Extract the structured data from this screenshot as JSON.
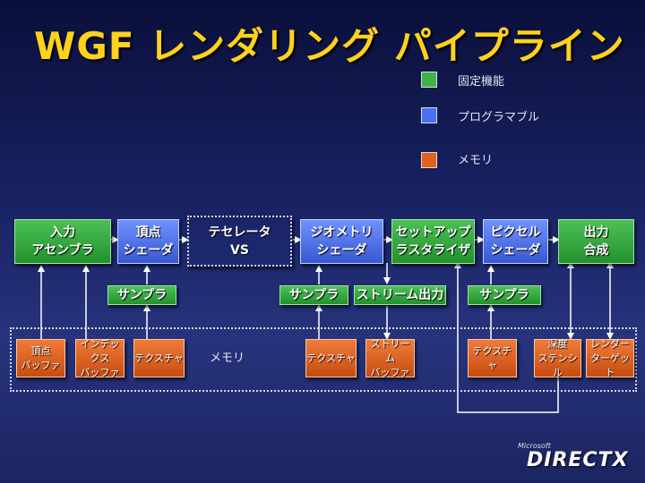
{
  "title": "WGF レンダリング パイプライン",
  "legend": [
    {
      "label": "固定機能",
      "color": "#3fb34a"
    },
    {
      "label": "プログラマブル",
      "color": "#4a6ff0"
    },
    {
      "label": "メモリ",
      "color": "#e0621f"
    }
  ],
  "stages": [
    {
      "label": "入力\nアセンブラ",
      "kind": "fixed"
    },
    {
      "label": "頂点\nシェーダ",
      "kind": "programmable"
    },
    {
      "label": "テセレータ\nVS",
      "kind": "optional"
    },
    {
      "label": "ジオメトリ\nシェーダ",
      "kind": "programmable"
    },
    {
      "label": "セットアップ\nラスタライザ",
      "kind": "fixed"
    },
    {
      "label": "ピクセル\nシェーダ",
      "kind": "programmable"
    },
    {
      "label": "出力\n合成",
      "kind": "fixed"
    }
  ],
  "helpers": {
    "sampler_1": "サンプラ",
    "sampler_2": "サンプラ",
    "stream_out": "ストリーム出力",
    "sampler_3": "サンプラ"
  },
  "memory_label": "メモリ",
  "memory": [
    {
      "label": "頂点\nバッファ"
    },
    {
      "label": "インデックス\nバッファ"
    },
    {
      "label": "テクスチャ"
    },
    {
      "label": "テクスチャ"
    },
    {
      "label": "ストリーム\nバッファ"
    },
    {
      "label": "テクスチャ"
    },
    {
      "label": "深度\nステンシル"
    },
    {
      "label": "レンダー\nターゲット"
    }
  ],
  "logo": {
    "small": "Microsoft",
    "main": "DIRECTX"
  }
}
